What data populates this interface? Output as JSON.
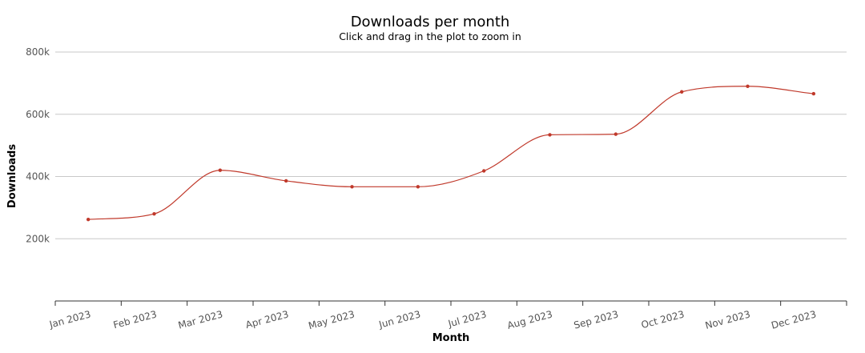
{
  "chart_data": {
    "type": "line",
    "title": "Downloads per month",
    "subtitle": "Click and drag in the plot to zoom in",
    "xlabel": "Month",
    "ylabel": "Downloads",
    "categories": [
      "Jan 2023",
      "Feb 2023",
      "Mar 2023",
      "Apr 2023",
      "May 2023",
      "Jun 2023",
      "Jul 2023",
      "Aug 2023",
      "Sep 2023",
      "Oct 2023",
      "Nov 2023",
      "Dec 2023"
    ],
    "values": [
      262000,
      280000,
      420000,
      386000,
      367000,
      367000,
      418000,
      534000,
      536000,
      672000,
      690000,
      666000
    ],
    "ylim": [
      0,
      800000
    ],
    "yticks": [
      200000,
      400000,
      600000,
      800000
    ],
    "ytick_labels": [
      "200k",
      "400k",
      "600k",
      "800k"
    ],
    "grid": true,
    "line_color": "#c0392b",
    "marker_color": "#c0392b"
  }
}
